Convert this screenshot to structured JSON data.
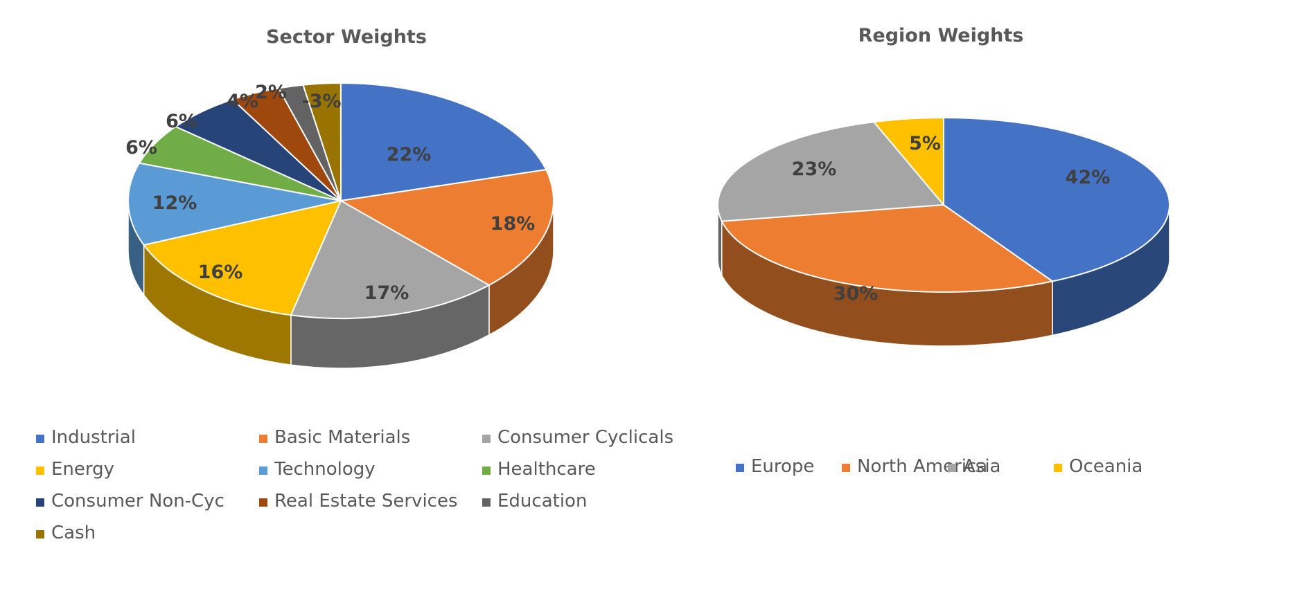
{
  "chart_data": [
    {
      "type": "pie",
      "title": "Sector Weights",
      "categories": [
        "Industrial",
        "Basic Materials",
        "Consumer Cyclicals",
        "Energy",
        "Technology",
        "Healthcare",
        "Consumer Non-Cyc",
        "Real Estate Services",
        "Education",
        "Cash"
      ],
      "values": [
        22,
        18,
        17,
        16,
        12,
        6,
        6,
        4,
        2,
        -3
      ],
      "slice_fractions": [
        0.2075,
        0.1698,
        0.1604,
        0.1509,
        0.1132,
        0.0566,
        0.0566,
        0.0377,
        0.0189,
        0.0283
      ],
      "data_labels": [
        "22%",
        "18%",
        "17%",
        "16%",
        "12%",
        "6%",
        "6%",
        "4%",
        "2%",
        "-3%"
      ],
      "colors": [
        "#4472C4",
        "#ED7D31",
        "#A5A5A5",
        "#FFC000",
        "#5B9BD5",
        "#70AD47",
        "#264478",
        "#9E480E",
        "#636363",
        "#997300"
      ],
      "style": "3d",
      "legend": "bottom"
    },
    {
      "type": "pie",
      "title": "Region Weights",
      "categories": [
        "Europe",
        "North America",
        "Asia",
        "Oceania"
      ],
      "values": [
        42,
        30,
        23,
        5
      ],
      "data_labels": [
        "42%",
        "30%",
        "23%",
        "5%"
      ],
      "colors": [
        "#4472C4",
        "#ED7D31",
        "#A5A5A5",
        "#FFC000"
      ],
      "style": "3d",
      "legend": "bottom"
    }
  ]
}
